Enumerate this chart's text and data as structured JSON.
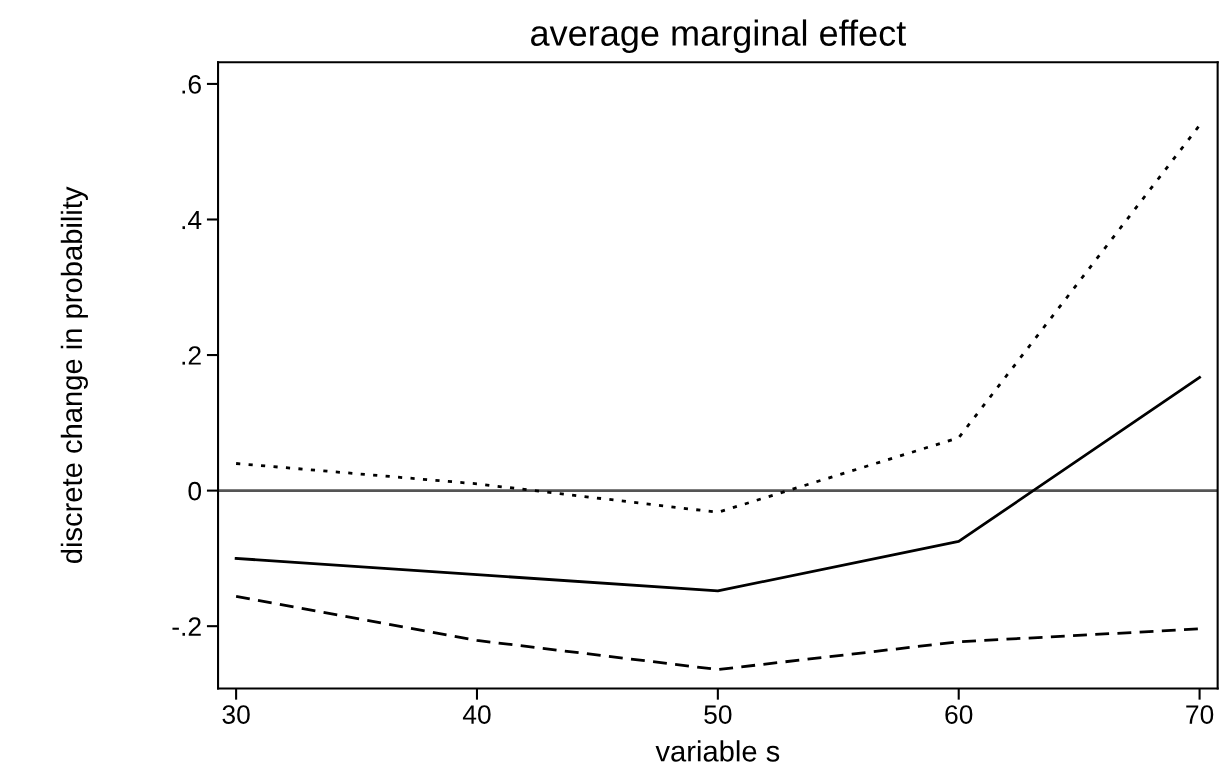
{
  "chart_data": {
    "type": "line",
    "title": "average marginal effect",
    "xlabel": "variable s",
    "ylabel": "discrete change in probability",
    "x": [
      30,
      40,
      50,
      60,
      70
    ],
    "series": [
      {
        "color": "#000000",
        "line_style": "dotted",
        "values": [
          0.04,
          0.01,
          -0.032,
          0.078,
          0.539
        ]
      },
      {
        "color": "#000000",
        "line_style": "solid",
        "values": [
          -0.1,
          -0.124,
          -0.148,
          -0.075,
          0.167
        ]
      },
      {
        "color": "#000000",
        "line_style": "dashed",
        "values": [
          -0.156,
          -0.221,
          -0.264,
          -0.223,
          -0.204
        ]
      }
    ],
    "xlim": [
      29.25,
      70.75
    ],
    "xticks": [
      30,
      40,
      50,
      60,
      70
    ],
    "ylim": [
      -0.292,
      0.632
    ],
    "yticks": [
      {
        "value": -0.2,
        "label": "-.2"
      },
      {
        "value": 0,
        "label": "0"
      },
      {
        "value": 0.2,
        "label": ".2"
      },
      {
        "value": 0.4,
        "label": ".4"
      },
      {
        "value": 0.6,
        "label": ".6"
      }
    ],
    "ref_lines": [
      {
        "axis": "y",
        "value": 0,
        "color": "#555555"
      }
    ],
    "grid": false,
    "legend": false
  }
}
